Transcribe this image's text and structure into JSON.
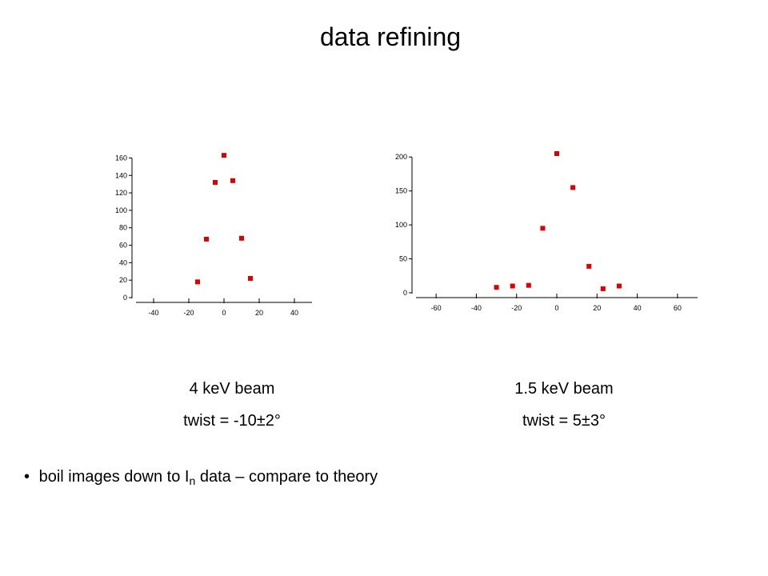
{
  "slide": {
    "title": "data refining",
    "bullet": {
      "symbol": "•",
      "text_before": "boil images down to I",
      "subscript": "n",
      "text_after": " data – compare to theory"
    }
  },
  "captions": [
    {
      "beam": "4 keV beam",
      "twist": "twist = -10±2°"
    },
    {
      "beam": "1.5 keV beam",
      "twist": "twist = 5±3°"
    }
  ],
  "chart_data": [
    {
      "type": "scatter",
      "title": "",
      "xlabel": "",
      "ylabel": "",
      "xlim": [
        -50,
        50
      ],
      "ylim": [
        0,
        165
      ],
      "x_ticks": [
        -40,
        -20,
        0,
        20,
        40
      ],
      "y_ticks": [
        0,
        20,
        40,
        60,
        80,
        100,
        120,
        140,
        160
      ],
      "marker_color": "#dd0000",
      "points": [
        {
          "x": -15,
          "y": 18
        },
        {
          "x": -10,
          "y": 67
        },
        {
          "x": -5,
          "y": 132
        },
        {
          "x": 0,
          "y": 163
        },
        {
          "x": 5,
          "y": 134
        },
        {
          "x": 10,
          "y": 68
        },
        {
          "x": 15,
          "y": 22
        }
      ]
    },
    {
      "type": "scatter",
      "title": "",
      "xlabel": "",
      "ylabel": "",
      "xlim": [
        -70,
        70
      ],
      "ylim": [
        0,
        205
      ],
      "x_ticks": [
        -60,
        -40,
        -20,
        0,
        20,
        40,
        60
      ],
      "y_ticks": [
        0,
        50,
        100,
        150,
        200
      ],
      "marker_color": "#dd0000",
      "points": [
        {
          "x": -30,
          "y": 8
        },
        {
          "x": -22,
          "y": 10
        },
        {
          "x": -14,
          "y": 11
        },
        {
          "x": -7,
          "y": 95
        },
        {
          "x": 0,
          "y": 205
        },
        {
          "x": 8,
          "y": 155
        },
        {
          "x": 16,
          "y": 39
        },
        {
          "x": 23,
          "y": 6
        },
        {
          "x": 31,
          "y": 10
        }
      ]
    }
  ]
}
